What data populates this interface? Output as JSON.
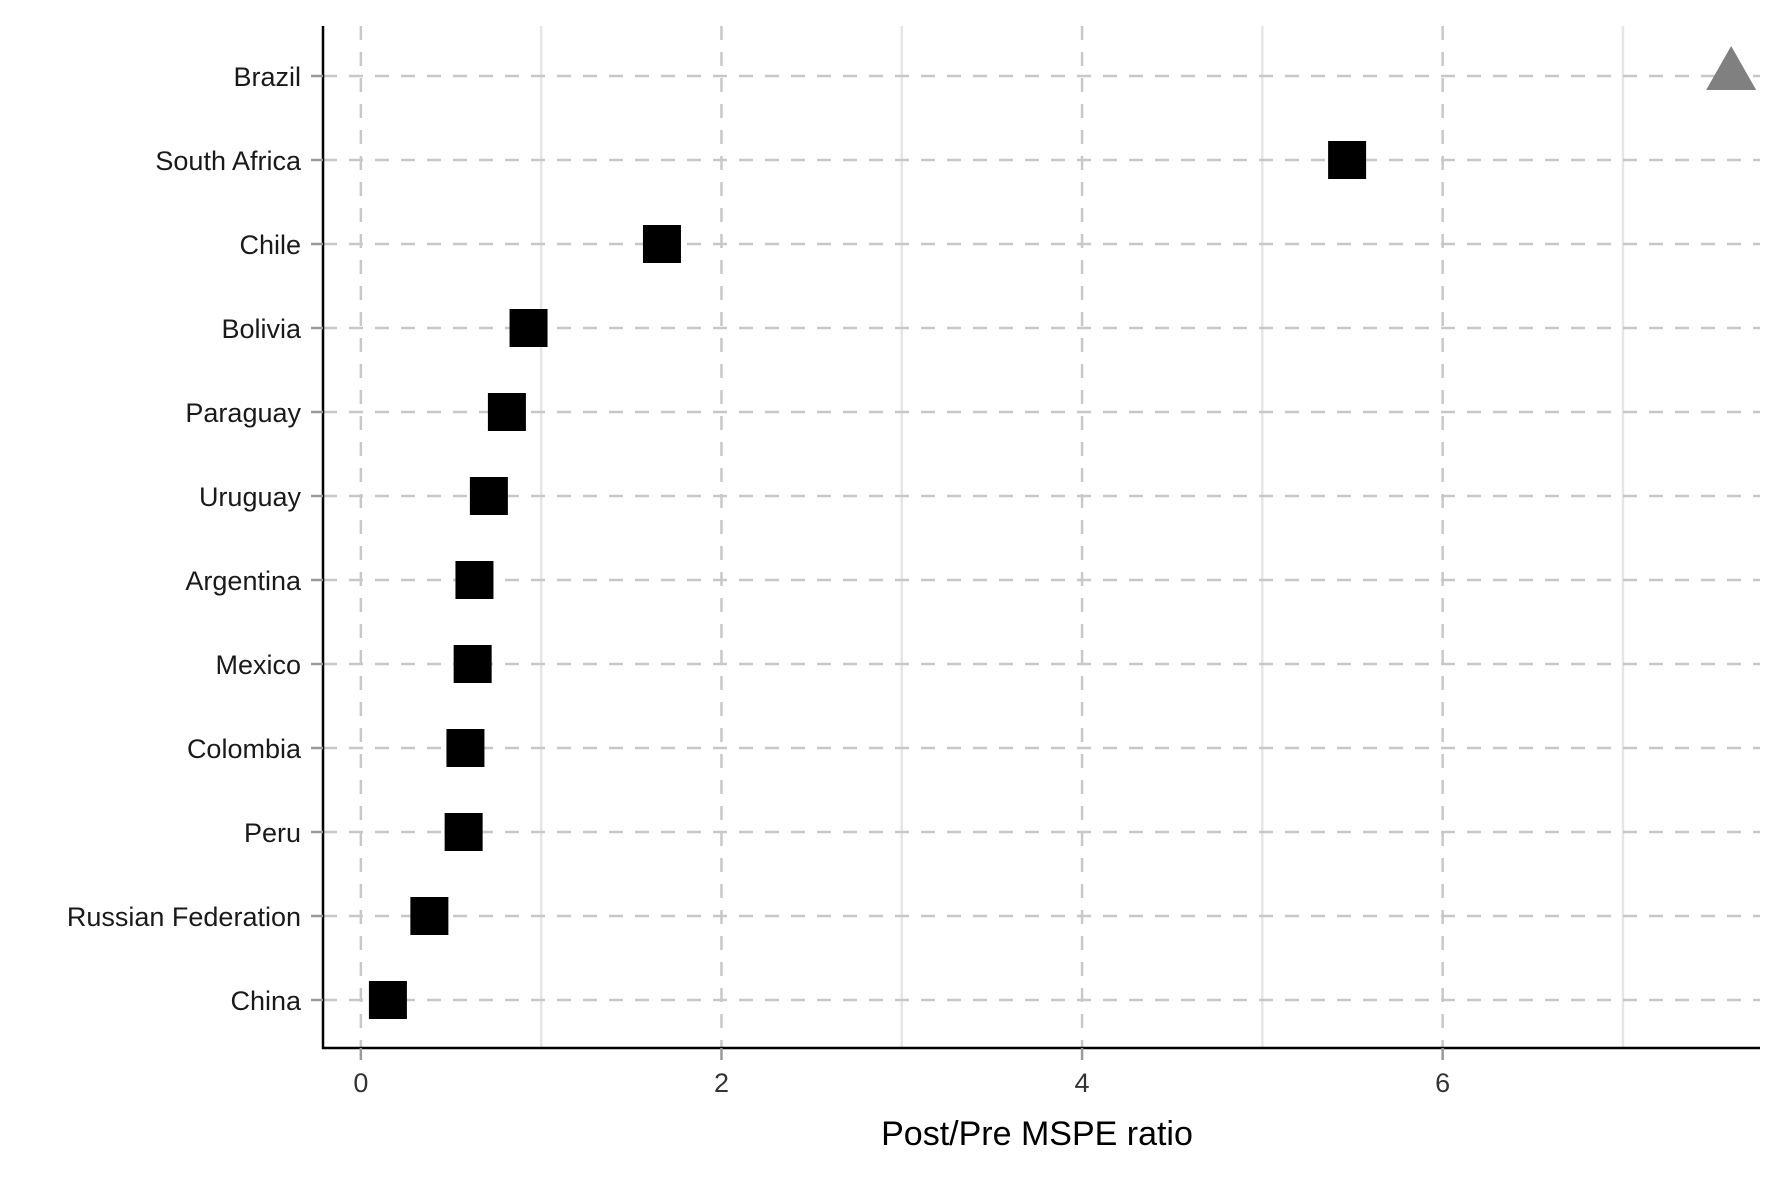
{
  "chart_data": {
    "type": "scatter",
    "title": "",
    "xlabel": "Post/Pre MSPE ratio",
    "ylabel": "",
    "xlim": [
      -0.21,
      7.76
    ],
    "x_ticks": [
      0,
      2,
      4,
      6
    ],
    "x_tick_labels": [
      "0",
      "2",
      "4",
      "6"
    ],
    "grid": true,
    "legend": "none",
    "categories": [
      "Brazil",
      "South Africa",
      "Chile",
      "Bolivia",
      "Paraguay",
      "Uruguay",
      "Argentina",
      "Mexico",
      "Colombia",
      "Peru",
      "Russian Federation",
      "China"
    ],
    "series": [
      {
        "marker": "triangle",
        "color": "#808080",
        "points": [
          {
            "category": "Brazil",
            "x": 7.6
          }
        ]
      },
      {
        "marker": "square",
        "color": "#000000",
        "points": [
          {
            "category": "South Africa",
            "x": 5.47
          },
          {
            "category": "Chile",
            "x": 1.67
          },
          {
            "category": "Bolivia",
            "x": 0.93
          },
          {
            "category": "Paraguay",
            "x": 0.81
          },
          {
            "category": "Uruguay",
            "x": 0.71
          },
          {
            "category": "Argentina",
            "x": 0.63
          },
          {
            "category": "Mexico",
            "x": 0.62
          },
          {
            "category": "Colombia",
            "x": 0.58
          },
          {
            "category": "Peru",
            "x": 0.57
          },
          {
            "category": "Russian Federation",
            "x": 0.38
          },
          {
            "category": "China",
            "x": 0.15
          }
        ]
      }
    ],
    "colors": {
      "axis": "#000000",
      "major_grid": "#c8c8c8",
      "minor_grid": "#e6e6e6",
      "tick": "#9a9a9a"
    }
  }
}
